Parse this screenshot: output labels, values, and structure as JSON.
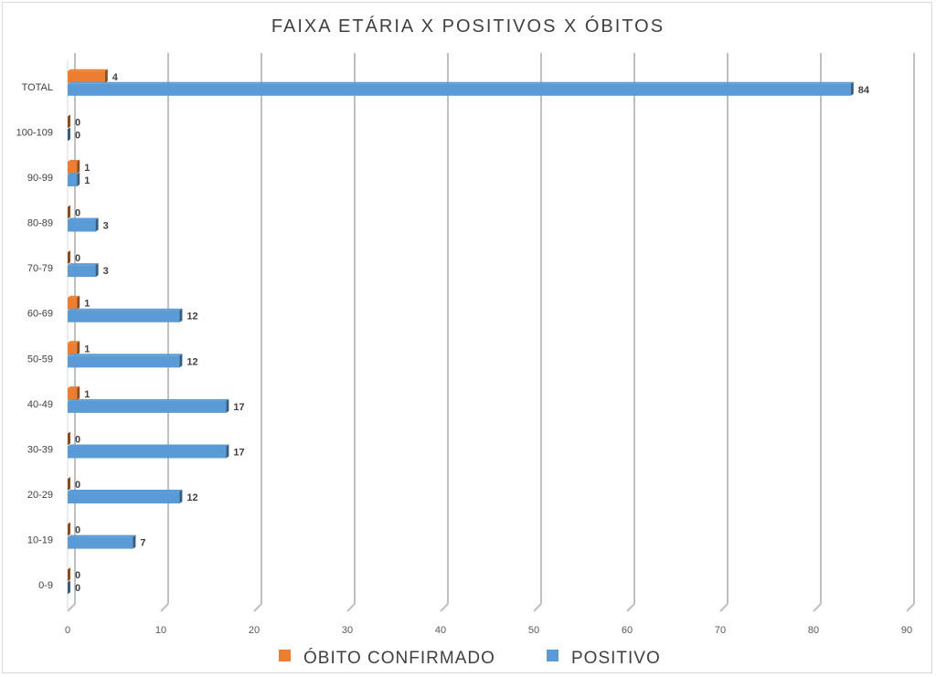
{
  "chart_data": {
    "type": "bar",
    "orientation": "horizontal",
    "title": "FAIXA ETÁRIA X POSITIVOS X ÓBITOS",
    "categories": [
      "TOTAL",
      "100-109",
      "90-99",
      "80-89",
      "70-79",
      "60-69",
      "50-59",
      "40-49",
      "30-39",
      "20-29",
      "10-19",
      "0-9"
    ],
    "series": [
      {
        "name": "ÓBITO CONFIRMADO",
        "color": "#ED7D31",
        "values": [
          4,
          0,
          1,
          0,
          0,
          1,
          1,
          1,
          0,
          0,
          0,
          0
        ]
      },
      {
        "name": "POSITIVO",
        "color": "#5B9BD5",
        "values": [
          84,
          0,
          1,
          3,
          3,
          12,
          12,
          17,
          17,
          12,
          7,
          0
        ]
      }
    ],
    "xlim": [
      0,
      90
    ],
    "x_ticks": [
      "0",
      "10",
      "20",
      "30",
      "40",
      "50",
      "60",
      "70",
      "80",
      "90"
    ],
    "grid": true,
    "legend_position": "bottom",
    "style": "3d"
  }
}
